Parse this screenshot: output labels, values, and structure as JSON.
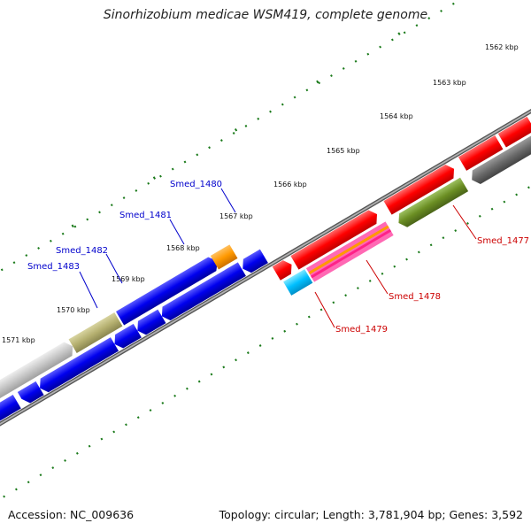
{
  "title": "Sinorhizobium medicae WSM419, complete genome",
  "footer": {
    "accession": "Accession: NC_009636",
    "summary": "Topology: circular; Length: 3,781,904 bp; Genes: 3,592"
  },
  "scale_ticks": [
    "1562 kbp",
    "1563 kbp",
    "1564 kbp",
    "1565 kbp",
    "1566 kbp",
    "1567 kbp",
    "1568 kbp",
    "1569 kbp",
    "1570 kbp",
    "1571 kbp"
  ],
  "gene_labels": [
    {
      "text": "Smed_1480",
      "color": "#0000cc"
    },
    {
      "text": "Smed_1481",
      "color": "#0000cc"
    },
    {
      "text": "Smed_1482",
      "color": "#0000cc"
    },
    {
      "text": "Smed_1483",
      "color": "#0000cc"
    },
    {
      "text": "Smed_1477",
      "color": "#cc0000"
    },
    {
      "text": "Smed_1478",
      "color": "#cc0000"
    },
    {
      "text": "Smed_1479",
      "color": "#cc0000"
    }
  ],
  "colors": {
    "forward_gene": "#ff0000",
    "reverse_gene": "#0000ee",
    "backbone": "#808080",
    "ticks": "#1a7a1a"
  }
}
